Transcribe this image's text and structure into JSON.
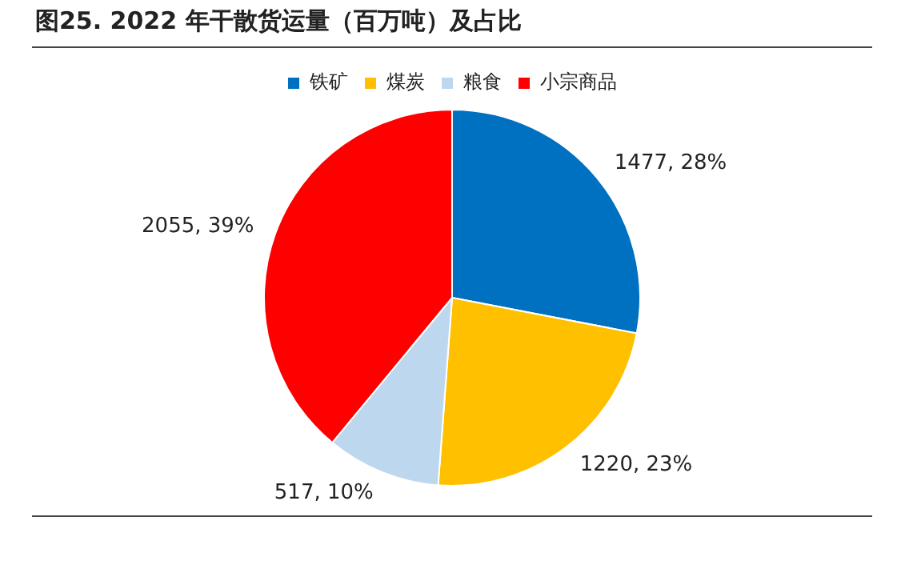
{
  "chart_data": {
    "type": "pie",
    "title": "图25. 2022 年干散货运量（百万吨）及占比",
    "categories": [
      "铁矿",
      "煤炭",
      "粮食",
      "小宗商品"
    ],
    "values": [
      1477,
      1220,
      517,
      2055
    ],
    "colors": [
      "#0070c0",
      "#ffc000",
      "#bdd7ee",
      "#ff0000"
    ],
    "value_labels": [
      "1477, 28%",
      "1220, 23%",
      "517, 10%",
      "2055, 39%"
    ],
    "legend": "top"
  }
}
